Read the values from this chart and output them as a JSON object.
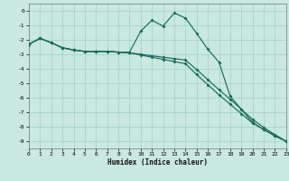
{
  "xlabel": "Humidex (Indice chaleur)",
  "bg_color": "#c8e8e0",
  "grid_color": "#a8d4c8",
  "line_color": "#1a6b5a",
  "xlim": [
    0,
    23
  ],
  "ylim": [
    -9.5,
    0.5
  ],
  "xticks": [
    0,
    1,
    2,
    3,
    4,
    5,
    6,
    7,
    8,
    9,
    10,
    11,
    12,
    13,
    14,
    15,
    16,
    17,
    18,
    19,
    20,
    21,
    22,
    23
  ],
  "yticks": [
    0,
    -1,
    -2,
    -3,
    -4,
    -5,
    -6,
    -7,
    -8,
    -9
  ],
  "line1_x": [
    0,
    1,
    2,
    3,
    4,
    5,
    6,
    7,
    8,
    9,
    10,
    11,
    12,
    13,
    14,
    15,
    16,
    17,
    18,
    19,
    20,
    21,
    22,
    23
  ],
  "line1_y": [
    -2.3,
    -1.9,
    -2.2,
    -2.55,
    -2.7,
    -2.8,
    -2.8,
    -2.8,
    -2.85,
    -2.85,
    -1.4,
    -0.65,
    -1.05,
    -0.15,
    -0.5,
    -1.55,
    -2.65,
    -3.55,
    -5.9,
    -6.8,
    -7.7,
    -8.2,
    -8.6,
    -9.0
  ],
  "line2_x": [
    0,
    1,
    2,
    3,
    4,
    5,
    6,
    7,
    8,
    9,
    10,
    11,
    12,
    13,
    14,
    15,
    16,
    17,
    18,
    19,
    20,
    21,
    22,
    23
  ],
  "line2_y": [
    -2.3,
    -1.9,
    -2.2,
    -2.55,
    -2.7,
    -2.8,
    -2.8,
    -2.8,
    -2.85,
    -2.9,
    -3.0,
    -3.1,
    -3.2,
    -3.3,
    -3.4,
    -4.05,
    -4.75,
    -5.45,
    -6.1,
    -6.8,
    -7.5,
    -8.05,
    -8.55,
    -9.0
  ],
  "line3_x": [
    0,
    1,
    2,
    3,
    4,
    5,
    6,
    7,
    8,
    9,
    10,
    11,
    12,
    13,
    14,
    15,
    16,
    17,
    18,
    19,
    20,
    21,
    22,
    23
  ],
  "line3_y": [
    -2.3,
    -1.9,
    -2.2,
    -2.55,
    -2.7,
    -2.8,
    -2.8,
    -2.8,
    -2.85,
    -2.9,
    -3.05,
    -3.2,
    -3.35,
    -3.5,
    -3.65,
    -4.4,
    -5.1,
    -5.8,
    -6.45,
    -7.1,
    -7.75,
    -8.2,
    -8.65,
    -9.0
  ]
}
